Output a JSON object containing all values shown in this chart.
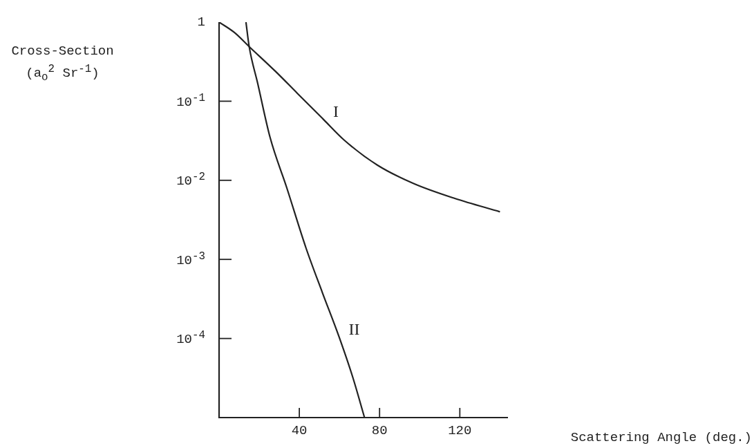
{
  "chart_data": {
    "type": "line",
    "xlabel": "Scattering Angle (deg.)",
    "ylabel": "Cross-Section (a$_{o}$$^{2}$ Sr$^{-1}$)",
    "log": "y",
    "xlim": [
      0,
      144
    ],
    "xticks": [
      40,
      80,
      120
    ],
    "ylim": [
      1e-05,
      1
    ],
    "yticks": [
      {
        "value": 0.0001,
        "label": "10$^{-4}$"
      },
      {
        "value": 0.001,
        "label": "10$^{-3}$"
      },
      {
        "value": 0.01,
        "label": "10$^{-2}$"
      },
      {
        "value": 0.1,
        "label": "10$^{-1}$"
      },
      1
    ],
    "grid": false,
    "legend": false,
    "marker": "none",
    "line_style": "solid",
    "series": [
      {
        "name": "I",
        "color": "#222222",
        "x": [
          0,
          7.6,
          15,
          28,
          39,
          52,
          62.5,
          79,
          97,
          117.5,
          140
        ],
        "values": [
          1,
          0.74,
          0.49,
          0.24,
          0.126,
          0.059,
          0.032,
          0.0155,
          0.0091,
          0.0059,
          0.004
        ]
      },
      {
        "name": "II",
        "color": "#222222",
        "x": [
          13.4,
          15,
          19.2,
          25.4,
          33.7,
          43.3,
          51.5,
          59.8,
          66.7,
          72.5
        ],
        "values": [
          1,
          0.49,
          0.17,
          0.035,
          0.0081,
          0.0014,
          0.00038,
          0.000105,
          3.2e-05,
          1e-05
        ]
      }
    ]
  }
}
